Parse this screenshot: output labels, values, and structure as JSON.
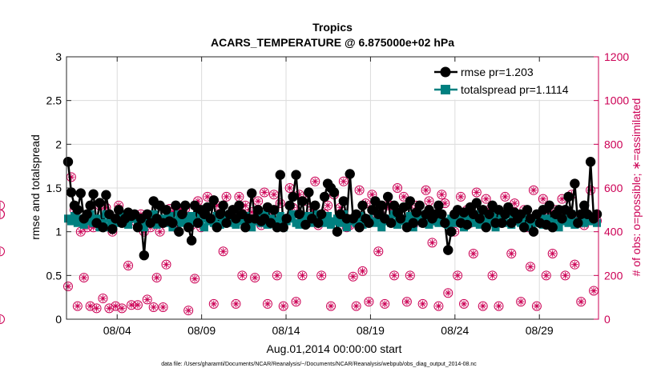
{
  "chart_data": {
    "type": "line",
    "title": "Tropics",
    "subtitle": "ACARS_TEMPERATURE @ 6.875000e+02 hPa",
    "xlabel": "Aug.01,2014 00:00:00 start",
    "ylabel_left": "rmse and totalspread",
    "ylabel_right": "# of obs: o=possible; ∗=assimilated",
    "footnote": "data file: /Users/gharamti/Documents/NCAR/Reanalysis/~/Documents/NCAR/Reanalysis/webpub/obs_diag_output_2014-08.nc",
    "xlim": [
      0,
      31.5
    ],
    "ylim_left": [
      0,
      3
    ],
    "ylim_right": [
      0,
      1200
    ],
    "x_ticks": [
      3,
      8,
      13,
      18,
      23,
      28
    ],
    "x_ticklabels": [
      "08/04",
      "08/09",
      "08/14",
      "08/19",
      "08/24",
      "08/29"
    ],
    "y_left_ticks": [
      0,
      0.5,
      1,
      1.5,
      2,
      2.5,
      3
    ],
    "y_left_ticklabels": [
      "0",
      "0.5",
      "1",
      "1.5",
      "2",
      "2.5",
      "3"
    ],
    "y_right_ticks": [
      0,
      200,
      400,
      600,
      800,
      1000,
      1200
    ],
    "y_right_ticklabels": [
      "0",
      "200",
      "400",
      "600",
      "800",
      "1000",
      "1200"
    ],
    "grid": true,
    "legend_position": "top-right",
    "colors": {
      "rmse": "#000000",
      "totalspread": "#008080",
      "obs": "#cc0055"
    },
    "series": [
      {
        "name": "rmse pr=1.203",
        "axis": "left",
        "marker": "circle",
        "values": [
          1.8,
          1.45,
          1.3,
          1.25,
          1.44,
          1.15,
          1.2,
          1.3,
          1.43,
          1.1,
          1.33,
          1.05,
          1.42,
          1.2,
          1.03,
          1.15,
          1.25,
          1.1,
          1.15,
          1.22,
          1.18,
          1.2,
          1.05,
          1.15,
          0.73,
          1.2,
          1.1,
          1.35,
          1.15,
          1.3,
          1.1,
          1.25,
          1.12,
          1.1,
          1.3,
          1.0,
          1.2,
          1.3,
          1.05,
          0.9,
          1.3,
          1.1,
          1.25,
          1.2,
          1.28,
          1.15,
          1.36,
          1.05,
          1.2,
          1.3,
          1.1,
          1.2,
          1.25,
          1.15,
          1.3,
          1.2,
          1.05,
          1.15,
          1.44,
          1.15,
          1.25,
          1.12,
          1.15,
          1.28,
          1.1,
          1.25,
          1.05,
          1.65,
          1.05,
          1.15,
          1.3,
          1.4,
          1.65,
          1.2,
          1.35,
          1.08,
          1.45,
          1.15,
          1.3,
          1.1,
          1.2,
          1.4,
          1.55,
          1.5,
          1.45,
          1.0,
          1.2,
          1.35,
          1.15,
          1.66,
          1.15,
          1.2,
          1.05,
          1.3,
          1.15,
          1.1,
          1.25,
          1.35,
          1.2,
          1.3,
          1.15,
          1.4,
          1.1,
          1.3,
          1.22,
          1.15,
          1.28,
          1.05,
          1.35,
          1.1,
          1.22,
          1.3,
          1.1,
          1.2,
          1.25,
          1.15,
          1.2,
          1.3,
          1.2,
          1.1,
          0.79,
          1.0,
          1.2,
          1.25,
          1.1,
          1.22,
          1.08,
          1.28,
          1.2,
          1.33,
          1.15,
          1.25,
          1.05,
          1.2,
          1.3,
          1.1,
          1.25,
          1.1,
          1.2,
          1.28,
          1.1,
          1.22,
          1.15,
          1.2,
          1.05,
          1.25,
          1.15,
          1.0,
          1.2,
          1.1,
          1.25,
          1.08,
          1.3,
          1.05,
          1.2,
          1.25,
          1.15,
          1.25,
          1.4,
          1.2,
          1.55,
          1.1,
          1.2,
          1.3,
          1.2,
          1.8,
          1.15,
          1.2
        ]
      },
      {
        "name": "totalspread pr=1.1114",
        "axis": "left",
        "marker": "square",
        "values": [
          1.15,
          1.12,
          1.18,
          1.1,
          1.15,
          1.08,
          1.12,
          1.2,
          1.1,
          1.15,
          1.05,
          1.1,
          1.2,
          1.05,
          1.12,
          1.15,
          1.1,
          1.2,
          1.12,
          1.08,
          1.15,
          1.18,
          1.1,
          1.12,
          1.05,
          1.1,
          1.15,
          1.2,
          1.08,
          1.12,
          1.15,
          1.1,
          1.18,
          1.05,
          1.12,
          1.2,
          1.1,
          1.15,
          1.08,
          1.18,
          1.12,
          1.1,
          1.2,
          1.05,
          1.15,
          1.12,
          1.1,
          1.18,
          1.08,
          1.12,
          1.15,
          1.2,
          1.1,
          1.08,
          1.15,
          1.12,
          1.18,
          1.1,
          1.05,
          1.12,
          1.15,
          1.1,
          1.2,
          1.08,
          1.15,
          1.12,
          1.1,
          1.18,
          1.05,
          1.12,
          1.15,
          1.2,
          1.1,
          1.08,
          1.15,
          1.12,
          1.18,
          1.1,
          1.15,
          1.2,
          1.12,
          1.1,
          1.18,
          1.08,
          1.12,
          1.15,
          1.1,
          1.2,
          1.05,
          1.12,
          1.15,
          1.1,
          1.18,
          1.08,
          1.12,
          1.15,
          1.12,
          1.1,
          1.18,
          1.05,
          1.12,
          1.15,
          1.1,
          1.2,
          1.08,
          1.15,
          1.12,
          1.1,
          1.18,
          1.05,
          1.12,
          1.15,
          1.1,
          1.2,
          1.08,
          1.15,
          1.12,
          1.1,
          1.18,
          1.12,
          1.08,
          1.15,
          1.1,
          1.12,
          1.18,
          1.05,
          1.12,
          1.15,
          1.1,
          1.2,
          1.08,
          1.15,
          1.12,
          1.1,
          1.18,
          1.05,
          1.12,
          1.15,
          1.1,
          1.2,
          1.08,
          1.12,
          1.15,
          1.1,
          1.18,
          1.05,
          1.12,
          1.15,
          1.1,
          1.2,
          1.08,
          1.15,
          1.12,
          1.1,
          1.18,
          1.05,
          1.12,
          1.15,
          1.1,
          1.2,
          1.08,
          1.12,
          1.15,
          1.1,
          1.18,
          1.12,
          1.15,
          1.1
        ]
      },
      {
        "name": "# of obs possible",
        "axis": "right",
        "marker": "open-circle",
        "values": [
          150,
          650,
          500,
          60,
          400,
          190,
          420,
          60,
          420,
          50,
          520,
          95,
          510,
          50,
          400,
          60,
          520,
          50,
          470,
          245,
          65,
          450,
          65,
          480,
          400,
          90,
          420,
          55,
          190,
          400,
          55,
          250,
          505,
          490,
          420,
          505,
          500,
          505,
          40,
          430,
          185,
          540,
          420,
          500,
          560,
          460,
          70,
          520,
          450,
          310,
          560,
          470,
          500,
          70,
          560,
          200,
          520,
          460,
          490,
          190,
          540,
          430,
          580,
          70,
          500,
          570,
          200,
          530,
          60,
          460,
          600,
          510,
          80,
          570,
          200,
          540,
          450,
          500,
          630,
          430,
          200,
          480,
          520,
          60,
          570,
          450,
          510,
          630,
          420,
          430,
          195,
          60,
          590,
          220,
          530,
          80,
          570,
          460,
          310,
          490,
          70,
          520,
          520,
          200,
          600,
          460,
          560,
          80,
          200,
          430,
          520,
          460,
          70,
          590,
          540,
          350,
          450,
          60,
          570,
          530,
          120,
          450,
          400,
          200,
          560,
          70,
          500,
          440,
          300,
          580,
          480,
          60,
          550,
          500,
          200,
          470,
          60,
          440,
          560,
          490,
          300,
          530,
          450,
          80,
          500,
          420,
          240,
          590,
          60,
          480,
          550,
          200,
          470,
          300,
          500,
          480,
          550,
          200,
          480,
          570,
          250,
          460,
          80,
          430,
          480,
          590,
          130,
          450,
          480,
          310,
          520,
          0,
          480
        ]
      },
      {
        "name": "# of obs assimilated",
        "axis": "right",
        "marker": "star",
        "values": [
          150,
          650,
          500,
          60,
          400,
          190,
          420,
          60,
          420,
          50,
          520,
          95,
          510,
          50,
          400,
          60,
          520,
          50,
          470,
          245,
          65,
          450,
          65,
          480,
          400,
          90,
          420,
          55,
          190,
          400,
          55,
          250,
          505,
          490,
          420,
          505,
          500,
          505,
          40,
          430,
          185,
          540,
          420,
          500,
          560,
          460,
          70,
          520,
          450,
          310,
          560,
          470,
          500,
          70,
          560,
          200,
          520,
          460,
          490,
          190,
          540,
          430,
          580,
          70,
          500,
          570,
          200,
          530,
          60,
          460,
          600,
          510,
          80,
          570,
          200,
          540,
          450,
          500,
          630,
          430,
          200,
          480,
          520,
          60,
          570,
          450,
          510,
          630,
          420,
          430,
          195,
          60,
          590,
          220,
          530,
          80,
          570,
          460,
          310,
          490,
          70,
          520,
          520,
          200,
          600,
          460,
          560,
          80,
          200,
          430,
          520,
          460,
          70,
          590,
          540,
          350,
          450,
          60,
          570,
          530,
          120,
          450,
          400,
          200,
          560,
          70,
          500,
          440,
          300,
          580,
          480,
          60,
          550,
          500,
          200,
          470,
          60,
          440,
          560,
          490,
          300,
          530,
          450,
          80,
          500,
          420,
          240,
          590,
          60,
          480,
          550,
          200,
          470,
          300,
          500,
          480,
          550,
          200,
          480,
          570,
          250,
          460,
          80,
          430,
          480,
          590,
          130,
          450,
          480,
          310,
          520,
          0,
          480
        ]
      }
    ]
  }
}
